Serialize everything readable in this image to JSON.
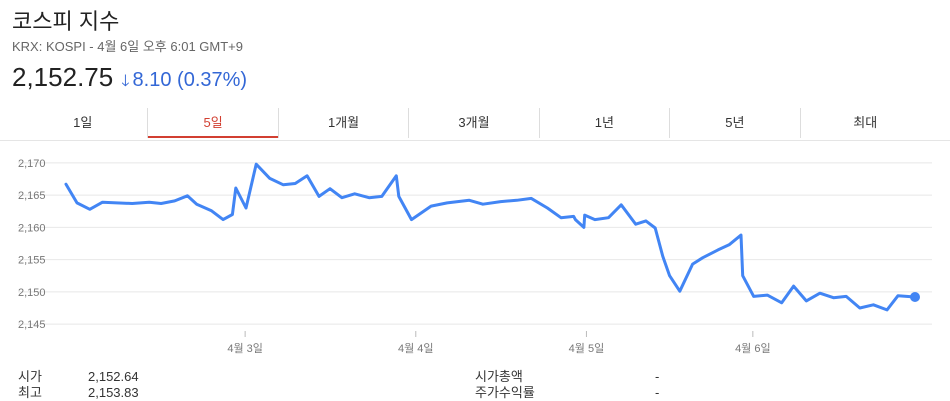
{
  "header": {
    "title": "코스피 지수",
    "subtitle": "KRX: KOSPI - 4월 6일 오후 6:01 GMT+9",
    "price": "2,152.75",
    "change": "8.10 (0.37%)",
    "change_color": "#3367d6"
  },
  "tabs": [
    {
      "label": "1일",
      "active": false
    },
    {
      "label": "5일",
      "active": true
    },
    {
      "label": "1개월",
      "active": false
    },
    {
      "label": "3개월",
      "active": false
    },
    {
      "label": "1년",
      "active": false
    },
    {
      "label": "5년",
      "active": false
    },
    {
      "label": "최대",
      "active": false
    }
  ],
  "stats_left": [
    {
      "label": "시가",
      "value": "2,152.64"
    },
    {
      "label": "최고",
      "value": "2,153.83"
    }
  ],
  "stats_right": [
    {
      "label": "시가총액",
      "value": "-"
    },
    {
      "label": "주가수익률",
      "value": "-"
    }
  ],
  "chart_data": {
    "type": "line",
    "line_color": "#4285f4",
    "ylim": [
      2143,
      2172
    ],
    "yticks": [
      2145,
      2150,
      2155,
      2160,
      2165,
      2170
    ],
    "ytick_labels": [
      "2,145",
      "2,150",
      "2,155",
      "2,160",
      "2,165",
      "2,170"
    ],
    "xlim": [
      0,
      100
    ],
    "xticks": [
      {
        "x": 21.1,
        "label": "4월 3일"
      },
      {
        "x": 41.2,
        "label": "4월 4일"
      },
      {
        "x": 61.3,
        "label": "4월 5일"
      },
      {
        "x": 80.9,
        "label": "4월 6일"
      }
    ],
    "grid": true,
    "series": [
      {
        "values": [
          [
            0,
            2166.7
          ],
          [
            1.3,
            2163.8
          ],
          [
            2.8,
            2162.8
          ],
          [
            4.3,
            2163.9
          ],
          [
            7.8,
            2163.7
          ],
          [
            9.8,
            2163.9
          ],
          [
            11.2,
            2163.7
          ],
          [
            12.8,
            2164.1
          ],
          [
            14.3,
            2164.9
          ],
          [
            15.4,
            2163.6
          ],
          [
            17.1,
            2162.6
          ],
          [
            18.5,
            2161.2
          ],
          [
            19.6,
            2162.0
          ],
          [
            20.0,
            2166.1
          ],
          [
            21.2,
            2163.0
          ],
          [
            22.4,
            2169.8
          ],
          [
            24.0,
            2167.6
          ],
          [
            25.6,
            2166.6
          ],
          [
            27.0,
            2166.8
          ],
          [
            28.4,
            2168.0
          ],
          [
            29.8,
            2164.8
          ],
          [
            31.1,
            2166.0
          ],
          [
            32.5,
            2164.6
          ],
          [
            34.0,
            2165.2
          ],
          [
            35.7,
            2164.6
          ],
          [
            37.2,
            2164.8
          ],
          [
            38.9,
            2168.0
          ],
          [
            39.2,
            2164.8
          ],
          [
            40.7,
            2161.2
          ],
          [
            43.0,
            2163.3
          ],
          [
            44.9,
            2163.8
          ],
          [
            47.5,
            2164.2
          ],
          [
            49.1,
            2163.6
          ],
          [
            51.2,
            2164.0
          ],
          [
            53.1,
            2164.2
          ],
          [
            54.8,
            2164.5
          ],
          [
            56.7,
            2163.0
          ],
          [
            58.3,
            2161.5
          ],
          [
            59.8,
            2161.7
          ],
          [
            60.0,
            2161.2
          ],
          [
            61.0,
            2160.0
          ],
          [
            61.1,
            2161.9
          ],
          [
            62.3,
            2161.2
          ],
          [
            63.9,
            2161.5
          ],
          [
            65.4,
            2163.5
          ],
          [
            67.1,
            2160.5
          ],
          [
            68.3,
            2161.0
          ],
          [
            69.4,
            2159.9
          ],
          [
            70.3,
            2155.5
          ],
          [
            71.1,
            2152.5
          ],
          [
            72.3,
            2150.1
          ],
          [
            73.8,
            2154.3
          ],
          [
            75.0,
            2155.3
          ],
          [
            76.8,
            2156.5
          ],
          [
            78.1,
            2157.3
          ],
          [
            79.5,
            2158.8
          ],
          [
            79.7,
            2152.5
          ],
          [
            81.0,
            2149.3
          ],
          [
            82.6,
            2149.5
          ],
          [
            84.3,
            2148.3
          ],
          [
            85.7,
            2150.9
          ],
          [
            87.2,
            2148.6
          ],
          [
            88.8,
            2149.8
          ],
          [
            90.4,
            2149.1
          ],
          [
            91.9,
            2149.3
          ],
          [
            93.5,
            2147.5
          ],
          [
            95.1,
            2148.0
          ],
          [
            96.7,
            2147.2
          ],
          [
            98.0,
            2149.4
          ],
          [
            100,
            2149.2
          ]
        ]
      }
    ]
  }
}
